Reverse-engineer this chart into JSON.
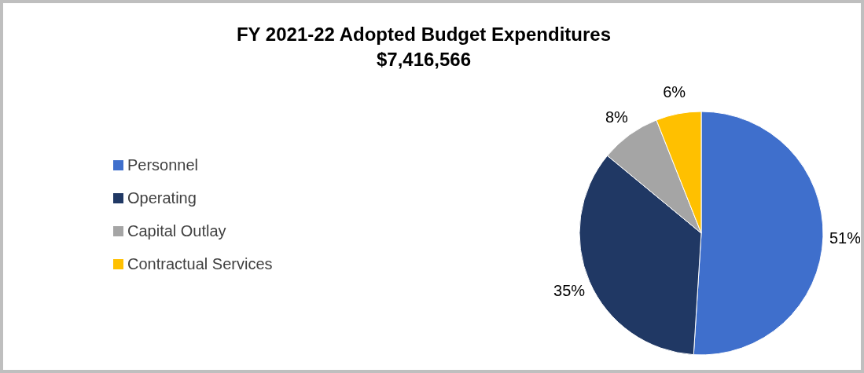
{
  "chart_data": {
    "type": "pie",
    "title": "FY 2021-22 Adopted Budget Expenditures",
    "subtitle": "$7,416,566",
    "categories": [
      "Personnel",
      "Operating",
      "Capital Outlay",
      "Contractual Services"
    ],
    "values": [
      51,
      35,
      8,
      6
    ],
    "value_labels": [
      "51%",
      "35%",
      "8%",
      "6%"
    ],
    "colors": [
      "#3f6fcc",
      "#203864",
      "#a5a5a5",
      "#ffc000"
    ],
    "legend": "left"
  }
}
